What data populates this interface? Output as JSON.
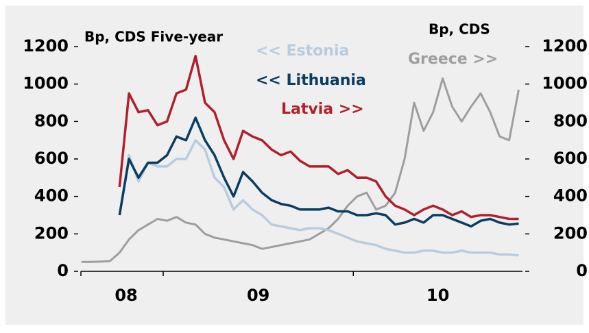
{
  "chart_data": {
    "type": "line",
    "title": "Bp, CDS Five-year",
    "y2_title": "Bp, CDS",
    "x": [
      2008.57,
      2008.62,
      2008.67,
      2008.72,
      2008.77,
      2008.82,
      2008.87,
      2008.92,
      2008.97,
      2009.02,
      2009.07,
      2009.12,
      2009.17,
      2009.22,
      2009.27,
      2009.32,
      2009.37,
      2009.42,
      2009.47,
      2009.52,
      2009.57,
      2009.62,
      2009.67,
      2009.72,
      2009.77,
      2009.82,
      2009.87,
      2009.92,
      2009.97,
      2010.02,
      2010.07,
      2010.12,
      2010.17,
      2010.22,
      2010.27,
      2010.32,
      2010.37,
      2010.42,
      2010.47,
      2010.52,
      2010.57,
      2010.62,
      2010.67,
      2010.72,
      2010.77,
      2010.82,
      2010.87
    ],
    "xlim": [
      2008.567,
      2010.89
    ],
    "xticks": [
      {
        "value": 2008.567,
        "label": "08"
      },
      {
        "value": 2009,
        "label": "09"
      },
      {
        "value": 2010,
        "label": "10"
      }
    ],
    "ylim": [
      0,
      1200
    ],
    "yticks": [
      0,
      200,
      400,
      600,
      800,
      1000,
      1200
    ],
    "y2lim": [
      0,
      1200
    ],
    "y2ticks": [
      0,
      200,
      400,
      600,
      800,
      1000,
      1200
    ],
    "series": [
      {
        "name": "Greece >>",
        "color": "#9e9e9e",
        "axis": "y2",
        "values": [
          50,
          50,
          52,
          55,
          100,
          170,
          220,
          250,
          280,
          270,
          290,
          260,
          250,
          200,
          180,
          170,
          160,
          150,
          140,
          120,
          130,
          140,
          150,
          160,
          170,
          200,
          230,
          280,
          350,
          400,
          420,
          330,
          350,
          420,
          600,
          900,
          750,
          850,
          1030,
          880,
          800,
          880,
          950,
          850,
          720,
          700,
          970
        ]
      },
      {
        "name": "<< Estonia",
        "color": "#b8cce0",
        "values": [
          null,
          null,
          null,
          null,
          300,
          620,
          480,
          580,
          560,
          560,
          600,
          600,
          700,
          650,
          500,
          450,
          330,
          380,
          330,
          300,
          250,
          240,
          230,
          220,
          230,
          230,
          220,
          200,
          180,
          160,
          150,
          140,
          120,
          110,
          100,
          100,
          110,
          110,
          100,
          100,
          110,
          100,
          100,
          100,
          90,
          90,
          85
        ]
      },
      {
        "name": "<< Lithuania",
        "color": "#0a3d62",
        "values": [
          null,
          null,
          null,
          null,
          300,
          600,
          500,
          580,
          580,
          620,
          720,
          700,
          820,
          700,
          620,
          500,
          400,
          530,
          480,
          420,
          380,
          360,
          350,
          330,
          330,
          330,
          340,
          320,
          320,
          300,
          300,
          310,
          300,
          250,
          260,
          280,
          260,
          300,
          300,
          280,
          260,
          240,
          270,
          280,
          260,
          250,
          255
        ]
      },
      {
        "name": "Latvia >>",
        "color": "#b0202a",
        "values": [
          null,
          null,
          null,
          null,
          450,
          950,
          850,
          860,
          780,
          800,
          950,
          970,
          1150,
          900,
          850,
          700,
          600,
          750,
          720,
          700,
          650,
          620,
          640,
          590,
          560,
          560,
          560,
          520,
          540,
          500,
          500,
          480,
          400,
          350,
          330,
          300,
          330,
          350,
          330,
          300,
          320,
          290,
          300,
          300,
          290,
          280,
          280
        ]
      }
    ]
  }
}
